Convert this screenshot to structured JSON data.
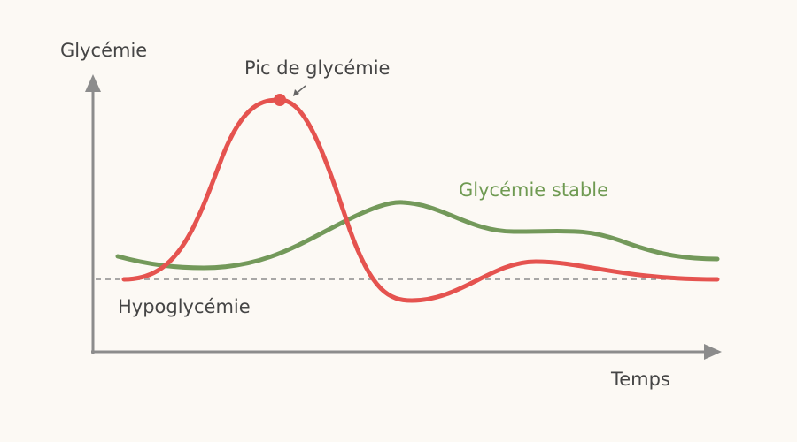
{
  "axes": {
    "y_label": "Glycémie",
    "x_label": "Temps"
  },
  "annotations": {
    "peak": "Pic de glycémie",
    "stable": "Glycémie stable",
    "hypo": "Hypoglycémie"
  }
}
